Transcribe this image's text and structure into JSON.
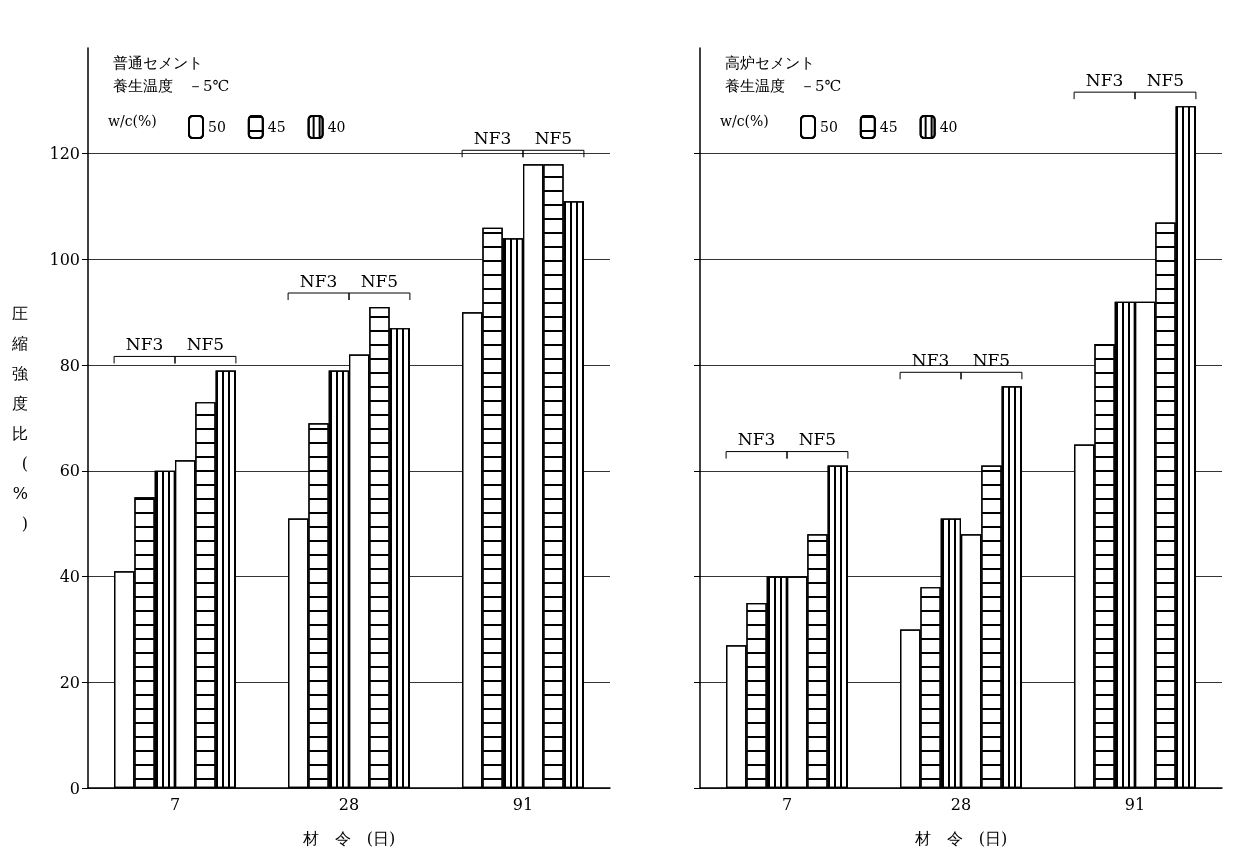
{
  "chart_data": [
    {
      "type": "bar",
      "title": "普通セメント",
      "subtitle": "養生温度　－5℃",
      "legend_title": "w/c(%)",
      "xlabel": "材　令　(日)",
      "ylabel": "圧縮強度比(%)",
      "categories": [
        "7",
        "28",
        "91"
      ],
      "series": [
        {
          "name": "50",
          "color": "#ffffff",
          "values": [
            41,
            51,
            90
          ]
        },
        {
          "name": "45",
          "color": "#ffffff",
          "values": [
            55,
            69,
            106
          ]
        },
        {
          "name": "40",
          "color": "#ffffff",
          "values": [
            60,
            79,
            104
          ]
        },
        {
          "color": "#ffffff",
          "values": [
            62,
            82,
            118
          ]
        },
        {
          "color": "#ffffff",
          "values": [
            73,
            91,
            118
          ]
        },
        {
          "color": "#ffffff",
          "values": [
            79,
            87,
            111
          ]
        }
      ],
      "annotations": [
        "NF3",
        "NF5",
        "NF3",
        "NF5",
        "NF3",
        "NF5"
      ],
      "ylim": [
        0,
        140
      ],
      "yticks": [
        0,
        20,
        40,
        60,
        80,
        100,
        120
      ],
      "grid": "y",
      "legend": "top left"
    },
    {
      "type": "bar",
      "title": "高炉セメント",
      "subtitle": "養生温度　－5℃",
      "legend_title": "w/c(%)",
      "xlabel": "材　令　(日)",
      "categories": [
        "7",
        "28",
        "91"
      ],
      "series": [
        {
          "name": "50",
          "color": "#ffffff",
          "values": [
            27,
            30,
            65
          ]
        },
        {
          "name": "45",
          "color": "#ffffff",
          "values": [
            35,
            38,
            84
          ]
        },
        {
          "name": "40",
          "color": "#ffffff",
          "values": [
            40,
            51,
            92
          ]
        },
        {
          "color": "#ffffff",
          "values": [
            40,
            48,
            92
          ]
        },
        {
          "color": "#ffffff",
          "values": [
            48,
            61,
            107
          ]
        },
        {
          "color": "#ffffff",
          "values": [
            61,
            76,
            129
          ]
        }
      ],
      "annotations": [
        "NF3",
        "NF5",
        "NF3",
        "NF5",
        "NF3",
        "NF5"
      ],
      "ylim": [
        0,
        140
      ],
      "yticks": [
        0,
        20,
        40,
        60,
        80,
        100,
        120
      ],
      "grid": "y",
      "legend": "top left",
      "tick_labels": "x"
    }
  ]
}
